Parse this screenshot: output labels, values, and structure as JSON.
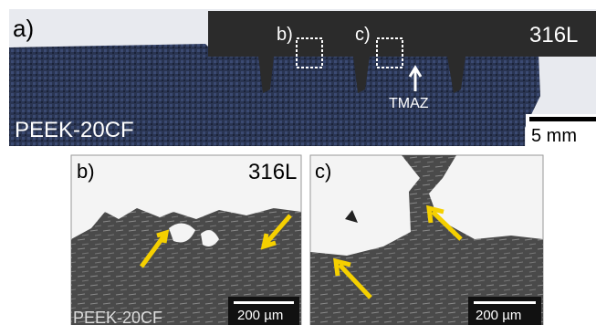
{
  "panel_a": {
    "label": "a)",
    "inset_b": "b)",
    "inset_c": "c)",
    "metal": "316L",
    "zone": "TMAZ",
    "composite": "PEEK-20CF",
    "scale": "5 mm"
  },
  "panel_b": {
    "label": "b)",
    "metal": "316L",
    "composite": "PEEK-20CF",
    "scale": "200 µm"
  },
  "panel_c": {
    "label": "c)",
    "scale": "200 µm"
  }
}
